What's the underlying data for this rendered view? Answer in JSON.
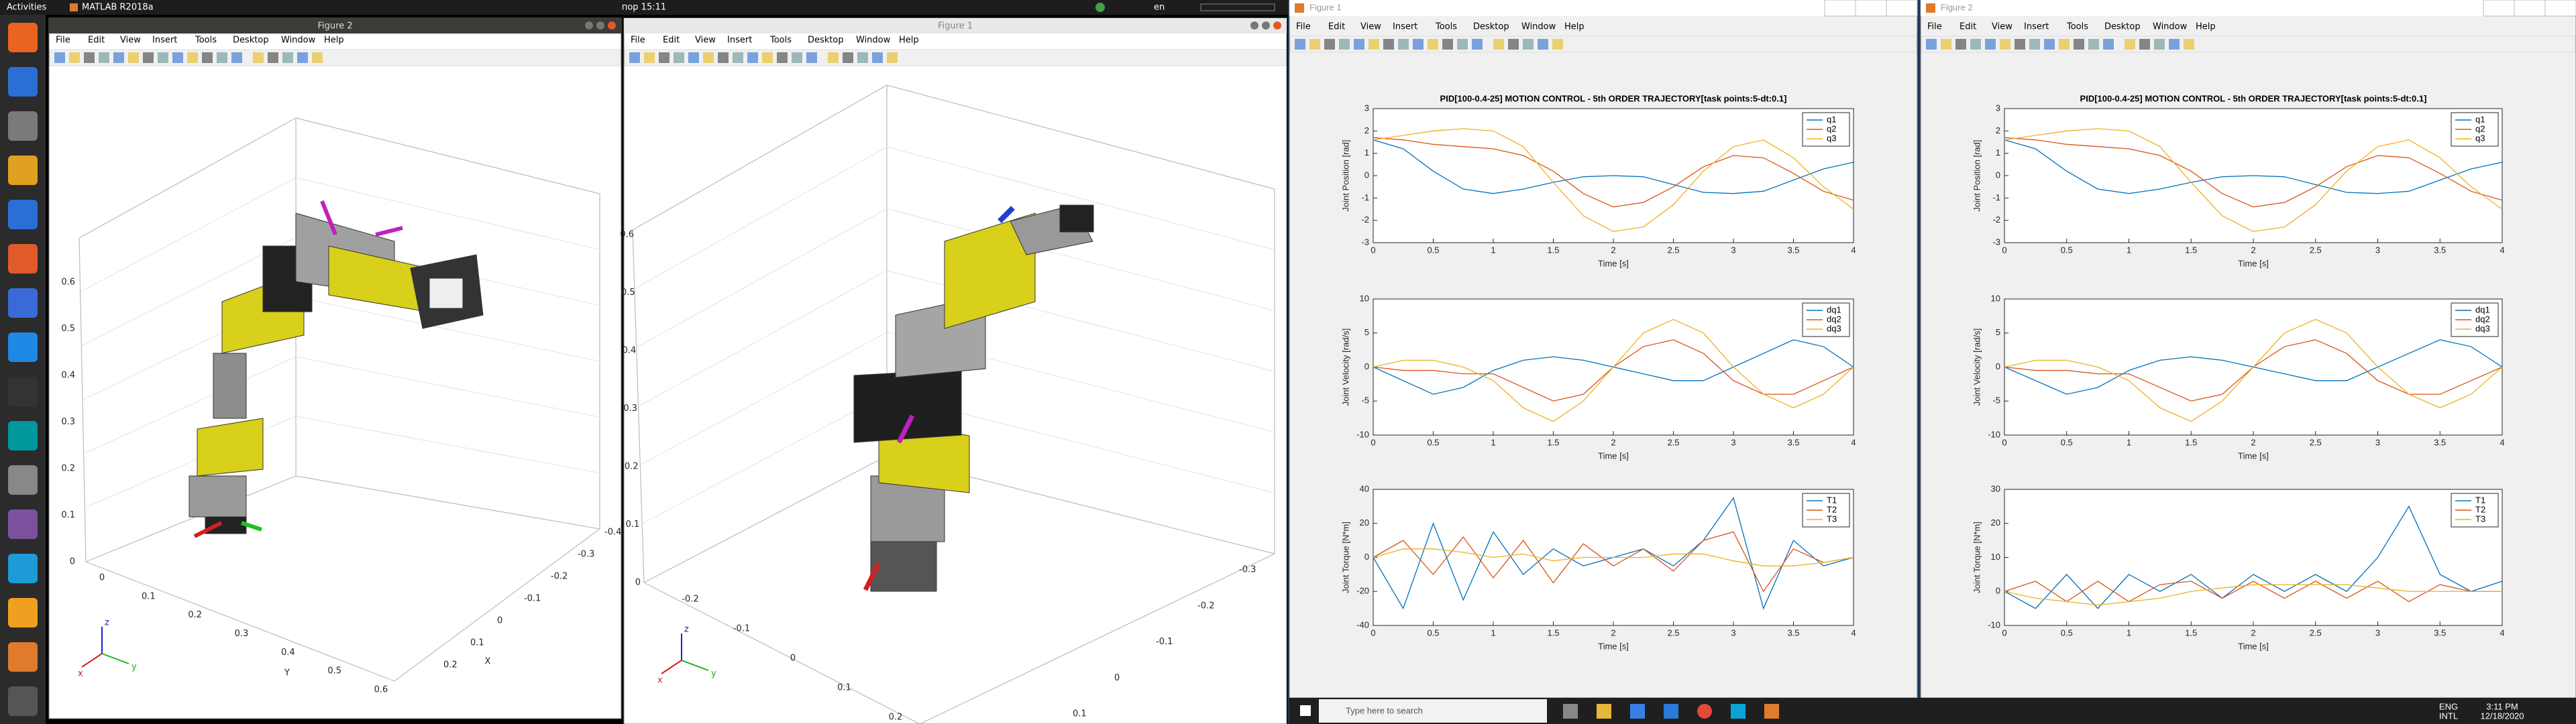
{
  "topbar": {
    "activities": "Activities",
    "app": "MATLAB R2018a",
    "clock": "пор 15:11",
    "lang": "en"
  },
  "windows": [
    {
      "title": "Figure 2",
      "menus": [
        "File",
        "Edit",
        "View",
        "Insert",
        "Tools",
        "Desktop",
        "Window",
        "Help"
      ],
      "zticks": [
        0,
        0.1,
        0.2,
        0.3,
        0.4,
        0.5,
        0.6
      ],
      "yticks": [
        0,
        0.1,
        0.2,
        0.3,
        0.4,
        0.5,
        0.6
      ],
      "xticks": [
        -0.4,
        -0.3,
        -0.2,
        -0.1,
        0,
        0.1,
        0.2
      ],
      "xlabel": "X",
      "ylabel": "Y",
      "triad": [
        "x",
        "y",
        "z"
      ]
    },
    {
      "title": "Figure 1",
      "menus": [
        "File",
        "Edit",
        "View",
        "Insert",
        "Tools",
        "Desktop",
        "Window",
        "Help"
      ],
      "zticks": [
        0,
        0.1,
        0.2,
        0.3,
        0.4,
        0.5,
        0.6
      ],
      "yticks": [
        -0.2,
        -0.1,
        0,
        0.1,
        0.2
      ],
      "xticks": [
        -0.3,
        -0.2,
        -0.1,
        0,
        0.1
      ],
      "triad": [
        "x",
        "y",
        "z"
      ]
    },
    {
      "title": "Figure 1",
      "menus": [
        "File",
        "Edit",
        "View",
        "Insert",
        "Tools",
        "Desktop",
        "Window",
        "Help"
      ]
    },
    {
      "title": "Figure 2",
      "menus": [
        "File",
        "Edit",
        "View",
        "Insert",
        "Tools",
        "Desktop",
        "Window",
        "Help"
      ]
    }
  ],
  "chart_data": [
    {
      "type": "line",
      "title": "PID[100-0.4-25] MOTION CONTROL - 5th ORDER TRAJECTORY[task points:5-dt:0.1]",
      "xlabel": "Time [s]",
      "ylabel": "Joint Position [rad]",
      "x": [
        0,
        0.25,
        0.5,
        0.75,
        1,
        1.25,
        1.5,
        1.75,
        2,
        2.25,
        2.5,
        2.75,
        3,
        3.25,
        3.5,
        3.75,
        4
      ],
      "series": [
        {
          "name": "q1",
          "color": "#0072bd",
          "values": [
            1.6,
            1.2,
            0.2,
            -0.6,
            -0.8,
            -0.6,
            -0.3,
            -0.05,
            0,
            -0.05,
            -0.4,
            -0.75,
            -0.8,
            -0.7,
            -0.2,
            0.3,
            0.6
          ]
        },
        {
          "name": "q2",
          "color": "#d95319",
          "values": [
            1.7,
            1.6,
            1.4,
            1.3,
            1.2,
            0.9,
            0.2,
            -0.8,
            -1.4,
            -1.2,
            -0.5,
            0.4,
            0.9,
            0.8,
            0.1,
            -0.7,
            -1.1
          ]
        },
        {
          "name": "q3",
          "color": "#edb120",
          "values": [
            1.6,
            1.8,
            2,
            2.1,
            2,
            1.3,
            -0.3,
            -1.8,
            -2.5,
            -2.3,
            -1.3,
            0.2,
            1.3,
            1.6,
            0.8,
            -0.5,
            -1.5
          ]
        }
      ],
      "xlim": [
        0,
        4
      ],
      "ylim": [
        -3,
        3
      ],
      "xticks": [
        0,
        0.5,
        1,
        1.5,
        2,
        2.5,
        3,
        3.5,
        4
      ],
      "yticks": [
        -3,
        -2,
        -1,
        0,
        1,
        2,
        3
      ],
      "legend": "upper-right"
    },
    {
      "type": "line",
      "xlabel": "Time [s]",
      "ylabel": "Joint Velocity [rad/s]",
      "x": [
        0,
        0.25,
        0.5,
        0.75,
        1,
        1.25,
        1.5,
        1.75,
        2,
        2.25,
        2.5,
        2.75,
        3,
        3.25,
        3.5,
        3.75,
        4
      ],
      "series": [
        {
          "name": "dq1",
          "color": "#0072bd",
          "values": [
            0,
            -2,
            -4,
            -3,
            -0.5,
            1,
            1.5,
            1,
            0,
            -1,
            -2,
            -2,
            0,
            2,
            4,
            3,
            0
          ]
        },
        {
          "name": "dq2",
          "color": "#d95319",
          "values": [
            0,
            -0.5,
            -0.5,
            -1,
            -1,
            -3,
            -5,
            -4,
            0,
            3,
            4,
            2,
            -2,
            -4,
            -4,
            -2,
            0
          ]
        },
        {
          "name": "dq3",
          "color": "#edb120",
          "values": [
            0,
            1,
            1,
            0,
            -2,
            -6,
            -8,
            -5,
            0,
            5,
            7,
            5,
            0,
            -4,
            -6,
            -4,
            0
          ]
        }
      ],
      "xlim": [
        0,
        4
      ],
      "ylim": [
        -10,
        10
      ],
      "xticks": [
        0,
        0.5,
        1,
        1.5,
        2,
        2.5,
        3,
        3.5,
        4
      ],
      "yticks": [
        -10,
        -5,
        0,
        5,
        10
      ],
      "legend": "upper-right"
    },
    {
      "type": "line",
      "xlabel": "Time [s]",
      "ylabel": "Joint Torque [N*m]",
      "x": [
        0,
        0.25,
        0.5,
        0.75,
        1,
        1.25,
        1.5,
        1.75,
        2,
        2.25,
        2.5,
        2.75,
        3,
        3.25,
        3.5,
        3.75,
        4
      ],
      "series": [
        {
          "name": "T1",
          "color": "#0072bd",
          "values": [
            0,
            -30,
            20,
            -25,
            15,
            -10,
            5,
            -5,
            0,
            5,
            -5,
            10,
            35,
            -30,
            10,
            -5,
            0
          ]
        },
        {
          "name": "T2",
          "color": "#d95319",
          "values": [
            0,
            10,
            -10,
            12,
            -12,
            10,
            -15,
            8,
            -5,
            5,
            -8,
            10,
            15,
            -20,
            5,
            -3,
            0
          ]
        },
        {
          "name": "T3",
          "color": "#edb120",
          "values": [
            0,
            5,
            5,
            3,
            0,
            2,
            -2,
            0,
            0,
            0,
            2,
            2,
            -2,
            -5,
            -5,
            -3,
            0
          ]
        }
      ],
      "xlim": [
        0,
        4
      ],
      "ylim": [
        -40,
        40
      ],
      "xticks": [
        0,
        0.5,
        1,
        1.5,
        2,
        2.5,
        3,
        3.5,
        4
      ],
      "yticks": [
        -40,
        -20,
        0,
        20,
        40
      ],
      "legend": "upper-right"
    },
    {
      "type": "line",
      "title": "PID[100-0.4-25] MOTION CONTROL - 5th ORDER TRAJECTORY[task points:5-dt:0.1]",
      "xlabel": "Time [s]",
      "ylabel": "Joint Position [rad]",
      "x": [
        0,
        0.25,
        0.5,
        0.75,
        1,
        1.25,
        1.5,
        1.75,
        2,
        2.25,
        2.5,
        2.75,
        3,
        3.25,
        3.5,
        3.75,
        4
      ],
      "series": [
        {
          "name": "q1",
          "color": "#0072bd",
          "values": [
            1.6,
            1.2,
            0.2,
            -0.6,
            -0.8,
            -0.6,
            -0.3,
            -0.05,
            0,
            -0.05,
            -0.4,
            -0.75,
            -0.8,
            -0.7,
            -0.2,
            0.3,
            0.6
          ]
        },
        {
          "name": "q2",
          "color": "#d95319",
          "values": [
            1.7,
            1.6,
            1.4,
            1.3,
            1.2,
            0.9,
            0.2,
            -0.8,
            -1.4,
            -1.2,
            -0.5,
            0.4,
            0.9,
            0.8,
            0.1,
            -0.7,
            -1.1
          ]
        },
        {
          "name": "q3",
          "color": "#edb120",
          "values": [
            1.6,
            1.8,
            2,
            2.1,
            2,
            1.3,
            -0.3,
            -1.8,
            -2.5,
            -2.3,
            -1.3,
            0.2,
            1.3,
            1.6,
            0.8,
            -0.5,
            -1.5
          ]
        }
      ],
      "xlim": [
        0,
        4
      ],
      "ylim": [
        -3,
        3
      ],
      "xticks": [
        0,
        0.5,
        1,
        1.5,
        2,
        2.5,
        3,
        3.5,
        4
      ],
      "yticks": [
        -3,
        -2,
        -1,
        0,
        1,
        2,
        3
      ],
      "legend": "upper-right"
    },
    {
      "type": "line",
      "xlabel": "Time [s]",
      "ylabel": "Joint Velocity [rad/s]",
      "x": [
        0,
        0.25,
        0.5,
        0.75,
        1,
        1.25,
        1.5,
        1.75,
        2,
        2.25,
        2.5,
        2.75,
        3,
        3.25,
        3.5,
        3.75,
        4
      ],
      "series": [
        {
          "name": "dq1",
          "color": "#0072bd",
          "values": [
            0,
            -2,
            -4,
            -3,
            -0.5,
            1,
            1.5,
            1,
            0,
            -1,
            -2,
            -2,
            0,
            2,
            4,
            3,
            0
          ]
        },
        {
          "name": "dq2",
          "color": "#d95319",
          "values": [
            0,
            -0.5,
            -0.5,
            -1,
            -1,
            -3,
            -5,
            -4,
            0,
            3,
            4,
            2,
            -2,
            -4,
            -4,
            -2,
            0
          ]
        },
        {
          "name": "dq3",
          "color": "#edb120",
          "values": [
            0,
            1,
            1,
            0,
            -2,
            -6,
            -8,
            -5,
            0,
            5,
            7,
            5,
            0,
            -4,
            -6,
            -4,
            0
          ]
        }
      ],
      "xlim": [
        0,
        4
      ],
      "ylim": [
        -10,
        10
      ],
      "xticks": [
        0,
        0.5,
        1,
        1.5,
        2,
        2.5,
        3,
        3.5,
        4
      ],
      "yticks": [
        -10,
        -5,
        0,
        5,
        10
      ],
      "legend": "upper-right"
    },
    {
      "type": "line",
      "xlabel": "Time [s]",
      "ylabel": "Joint Torque [N*m]",
      "x": [
        0,
        0.25,
        0.5,
        0.75,
        1,
        1.25,
        1.5,
        1.75,
        2,
        2.25,
        2.5,
        2.75,
        3,
        3.25,
        3.5,
        3.75,
        4
      ],
      "series": [
        {
          "name": "T1",
          "color": "#0072bd",
          "values": [
            0,
            -5,
            5,
            -5,
            5,
            0,
            5,
            -2,
            5,
            0,
            5,
            0,
            10,
            25,
            5,
            0,
            3
          ]
        },
        {
          "name": "T2",
          "color": "#d95319",
          "values": [
            0,
            3,
            -3,
            3,
            -3,
            2,
            3,
            -2,
            3,
            -2,
            3,
            -2,
            3,
            -3,
            2,
            0,
            0
          ]
        },
        {
          "name": "T3",
          "color": "#edb120",
          "values": [
            0,
            -2,
            -3,
            -4,
            -3,
            -2,
            0,
            1,
            2,
            2,
            2,
            2,
            1,
            0,
            0,
            0,
            0
          ]
        }
      ],
      "xlim": [
        0,
        4
      ],
      "ylim": [
        -10,
        30
      ],
      "xticks": [
        0,
        0.5,
        1,
        1.5,
        2,
        2.5,
        3,
        3.5,
        4
      ],
      "yticks": [
        -10,
        0,
        10,
        20,
        30
      ],
      "legend": "upper-right"
    }
  ],
  "taskbar": {
    "search": "Type here to search",
    "lang": "ENG",
    "layout": "INTL",
    "time": "3:11 PM",
    "date": "12/18/2020"
  }
}
